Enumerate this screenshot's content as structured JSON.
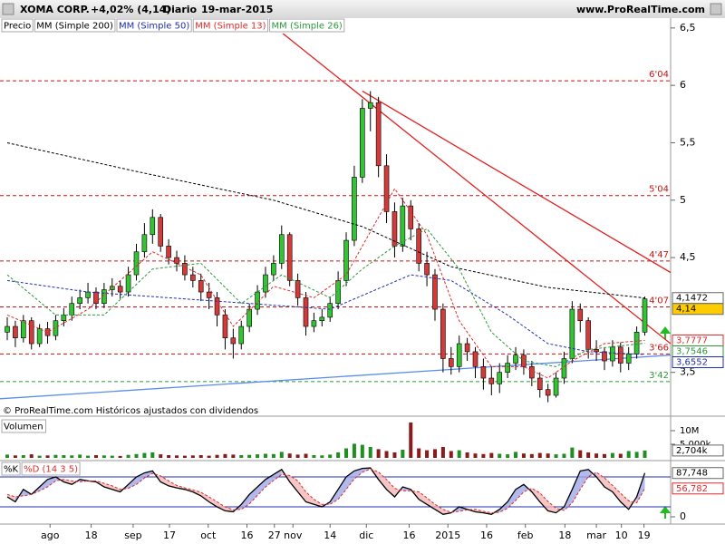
{
  "header": {
    "symbol": "XOMA CORP.",
    "change": "+4,02% (4,14)",
    "period": "Diario",
    "date": "19-mar-2015",
    "site": "www.ProRealTime.com"
  },
  "footer": "© ProRealTime.com  Históricos ajustados con dividendos",
  "chart_data": [
    {
      "type": "candlestick",
      "xlim": [
        -0.9,
        82.2
      ],
      "ylim": [
        3.15,
        6.57
      ],
      "yticks": [
        {
          "value": 6.5,
          "label": "6,5"
        },
        6,
        {
          "value": 5.5,
          "label": "5,5"
        },
        5,
        {
          "value": 4.5,
          "label": "4,5"
        },
        {
          "value": 3.5,
          "label": "3,5"
        }
      ],
      "xticks": [
        {
          "value": 5.3,
          "label": "ago"
        },
        {
          "value": 10.4,
          "label": "18"
        },
        {
          "value": 15.6,
          "label": "sep"
        },
        {
          "value": 20.1,
          "label": "17"
        },
        {
          "value": 24.9,
          "label": "oct"
        },
        {
          "value": 29.7,
          "label": "16"
        },
        {
          "value": 33.1,
          "label": "27"
        },
        {
          "value": 35.4,
          "label": "nov"
        },
        {
          "value": 40,
          "label": "14"
        },
        {
          "value": 44.5,
          "label": "dic"
        },
        {
          "value": 49.8,
          "label": "16"
        },
        {
          "value": 54.6,
          "label": "2015"
        },
        {
          "value": 59.4,
          "label": "16"
        },
        {
          "value": 64.2,
          "label": "feb"
        },
        {
          "value": 69.1,
          "label": "18"
        },
        {
          "value": 73,
          "label": "mar"
        },
        {
          "value": 76.1,
          "label": "10"
        },
        {
          "value": 78.9,
          "label": "19"
        }
      ],
      "series": [
        {
          "name": "Precio",
          "color": "#000000",
          "up_color": "#33c433",
          "down_color": "#d33a3a",
          "open": [
            3.85,
            3.9,
            3.8,
            3.95,
            3.75,
            3.88,
            3.82,
            3.95,
            4.0,
            4.1,
            4.15,
            4.2,
            4.1,
            4.22,
            4.25,
            4.2,
            4.35,
            4.55,
            4.7,
            4.85,
            4.6,
            4.5,
            4.45,
            4.35,
            4.3,
            4.2,
            4.15,
            4.0,
            3.8,
            3.75,
            3.9,
            4.05,
            4.2,
            4.35,
            4.45,
            4.7,
            4.3,
            4.15,
            3.9,
            3.95,
            3.98,
            4.1,
            4.3,
            4.65,
            5.2,
            5.8,
            5.85,
            5.3,
            4.9,
            4.6,
            4.95,
            4.75,
            4.45,
            4.35,
            4.05,
            3.62,
            3.55,
            3.75,
            3.68,
            3.55,
            3.45,
            3.4,
            3.5,
            3.58,
            3.65,
            3.55,
            3.45,
            3.35,
            3.3,
            3.45,
            3.62,
            4.05,
            3.95,
            3.7,
            3.68,
            3.6,
            3.72,
            3.58,
            3.66,
            3.85
          ],
          "high": [
            3.98,
            3.95,
            4.0,
            3.98,
            3.92,
            3.94,
            4.0,
            4.06,
            4.16,
            4.22,
            4.28,
            4.24,
            4.28,
            4.32,
            4.3,
            4.42,
            4.62,
            4.8,
            4.92,
            4.88,
            4.66,
            4.56,
            4.52,
            4.42,
            4.36,
            4.28,
            4.2,
            4.05,
            3.88,
            3.95,
            4.1,
            4.26,
            4.42,
            4.52,
            4.78,
            4.72,
            4.36,
            4.2,
            4.02,
            4.05,
            4.16,
            4.38,
            4.72,
            5.3,
            5.88,
            5.95,
            5.9,
            5.4,
            4.98,
            5.02,
            5.0,
            4.8,
            4.55,
            4.4,
            4.1,
            3.72,
            3.82,
            3.8,
            3.72,
            3.62,
            3.55,
            3.58,
            3.65,
            3.72,
            3.7,
            3.6,
            3.5,
            3.4,
            3.5,
            3.68,
            4.12,
            4.1,
            3.98,
            3.78,
            3.72,
            3.78,
            3.76,
            3.72,
            3.9,
            4.16
          ],
          "low": [
            3.78,
            3.72,
            3.76,
            3.7,
            3.72,
            3.75,
            3.78,
            3.9,
            3.95,
            4.05,
            4.1,
            4.05,
            4.06,
            4.16,
            4.14,
            4.16,
            4.3,
            4.5,
            4.62,
            4.55,
            4.44,
            4.38,
            4.3,
            4.24,
            4.12,
            4.05,
            3.9,
            3.7,
            3.62,
            3.7,
            3.85,
            4.0,
            4.15,
            4.3,
            4.4,
            4.25,
            4.08,
            3.82,
            3.85,
            3.9,
            3.94,
            4.05,
            4.25,
            4.6,
            5.15,
            5.6,
            5.2,
            4.8,
            4.5,
            4.55,
            4.65,
            4.38,
            4.25,
            3.95,
            3.5,
            3.48,
            3.5,
            3.6,
            3.45,
            3.35,
            3.3,
            3.32,
            3.45,
            3.52,
            3.48,
            3.38,
            3.28,
            3.24,
            3.28,
            3.4,
            3.58,
            3.85,
            3.62,
            3.6,
            3.52,
            3.55,
            3.5,
            3.52,
            3.62,
            3.82
          ],
          "close": [
            3.9,
            3.8,
            3.95,
            3.75,
            3.88,
            3.82,
            3.95,
            4.0,
            4.1,
            4.15,
            4.2,
            4.1,
            4.22,
            4.25,
            4.2,
            4.35,
            4.55,
            4.7,
            4.85,
            4.6,
            4.5,
            4.45,
            4.35,
            4.3,
            4.2,
            4.15,
            4.0,
            3.8,
            3.75,
            3.9,
            4.05,
            4.2,
            4.35,
            4.45,
            4.7,
            4.3,
            4.15,
            3.9,
            3.95,
            3.98,
            4.1,
            4.3,
            4.65,
            5.2,
            5.8,
            5.85,
            5.3,
            4.9,
            4.6,
            4.95,
            4.75,
            4.45,
            4.35,
            4.05,
            3.62,
            3.55,
            3.75,
            3.68,
            3.55,
            3.45,
            3.4,
            3.5,
            3.58,
            3.65,
            3.55,
            3.45,
            3.35,
            3.3,
            3.45,
            3.62,
            4.05,
            3.95,
            3.7,
            3.68,
            3.6,
            3.72,
            3.58,
            3.66,
            3.85,
            4.14
          ]
        },
        {
          "name": "MM (Simple 200)",
          "color": "#000000",
          "x": [
            0,
            16,
            33,
            44,
            55,
            67,
            79
          ],
          "values": [
            5.5,
            5.25,
            5.0,
            4.77,
            4.42,
            4.24,
            4.1472
          ]
        },
        {
          "name": "MM (Simple 50)",
          "color": "#1f2fb0",
          "x": [
            0,
            10,
            20,
            30,
            40,
            50,
            55,
            62,
            67,
            72,
            79
          ],
          "values": [
            4.3,
            4.2,
            4.15,
            4.1,
            4.05,
            4.35,
            4.3,
            4.0,
            3.75,
            3.68,
            3.6552
          ]
        },
        {
          "name": "MM (Simple 13)",
          "color": "#e02a2a",
          "x": [
            0,
            5,
            10,
            18,
            24,
            28,
            33,
            38,
            42,
            46,
            48,
            52,
            56,
            60,
            64,
            67,
            70,
            74,
            79
          ],
          "values": [
            4.0,
            3.85,
            4.05,
            4.55,
            4.35,
            3.9,
            4.25,
            4.15,
            4.35,
            4.85,
            5.1,
            4.7,
            3.95,
            3.55,
            3.55,
            3.45,
            3.6,
            3.75,
            3.7777
          ]
        },
        {
          "name": "MM (Simple 26)",
          "color": "#2a9a3a",
          "x": [
            0,
            6,
            12,
            18,
            24,
            29,
            34,
            40,
            44,
            48,
            52,
            56,
            60,
            64,
            68,
            72,
            79
          ],
          "values": [
            4.35,
            4.0,
            4.0,
            4.4,
            4.45,
            4.1,
            4.35,
            4.15,
            4.4,
            4.6,
            4.75,
            4.4,
            3.85,
            3.6,
            3.55,
            3.7,
            3.7546
          ]
        }
      ],
      "levels": [
        {
          "value": 6.04,
          "label": "6'04",
          "color": "#cc1111"
        },
        {
          "value": 5.04,
          "label": "5'04",
          "color": "#cc1111"
        },
        {
          "value": 4.47,
          "label": "4'47",
          "color": "#cc1111"
        },
        {
          "value": 4.07,
          "label": "4'07",
          "color": "#cc1111"
        },
        {
          "value": 3.66,
          "label": "3'66",
          "color": "#cc1111"
        },
        {
          "value": 3.42,
          "label": "3'42",
          "color": "#2a9a3a"
        }
      ],
      "trendlines": [
        {
          "x": [
            44,
            82.2
          ],
          "values": [
            5.95,
            4.37
          ],
          "color": "#e02020"
        },
        {
          "x": [
            31.7,
            82.2
          ],
          "values": [
            6.59,
            3.75
          ],
          "color": "#e02020"
        },
        {
          "x": [
            -0.9,
            82.2
          ],
          "values": [
            3.27,
            3.65
          ],
          "color": "#5b8def"
        }
      ],
      "last_values": [
        {
          "value": 4.1472,
          "label": "4,1472",
          "color": "#000000",
          "bg": "#ffffff"
        },
        {
          "value": 4.14,
          "label": "4,14",
          "color": "#000000",
          "bg": "#ffcc00"
        },
        {
          "value": 3.7777,
          "label": "3,7777",
          "color": "#e02a2a",
          "bg": "#ffffff"
        },
        {
          "value": 3.7546,
          "label": "3,7546",
          "color": "#2a9a3a",
          "bg": "#ffffff"
        },
        {
          "value": 3.6552,
          "label": "3,6552",
          "color": "#1f2fb0",
          "bg": "#ffffff"
        }
      ]
    },
    {
      "type": "bar",
      "title": "Volumen",
      "ylim": [
        0,
        14
      ],
      "yticks": [
        {
          "value": 10,
          "label": "10M"
        },
        {
          "value": 5,
          "label": "5,000k"
        }
      ],
      "values": [
        1.2,
        0.9,
        1.0,
        1.3,
        0.8,
        0.9,
        1.1,
        1.0,
        0.9,
        1.2,
        0.8,
        1.0,
        0.9,
        0.8,
        0.7,
        1.1,
        1.4,
        1.8,
        2.0,
        1.3,
        1.0,
        0.9,
        0.8,
        0.9,
        1.0,
        0.8,
        1.1,
        1.4,
        1.2,
        1.0,
        1.1,
        1.3,
        1.5,
        1.4,
        2.2,
        1.6,
        1.2,
        1.5,
        1.0,
        0.9,
        1.2,
        2.0,
        3.5,
        5.2,
        4.8,
        4.0,
        3.2,
        2.5,
        2.0,
        3.0,
        13.0,
        3.5,
        2.8,
        3.2,
        4.0,
        2.5,
        2.8,
        2.0,
        1.6,
        1.4,
        1.8,
        1.5,
        1.3,
        2.2,
        1.6,
        1.4,
        1.8,
        1.6,
        1.3,
        1.5,
        3.8,
        2.8,
        2.0,
        1.6,
        1.4,
        1.8,
        1.5,
        2.5,
        2.2,
        2.704
      ],
      "last_values": [
        {
          "value": 2.704,
          "label": "2,704k",
          "color": "#000000",
          "bg": "#ffffff"
        }
      ]
    },
    {
      "type": "line",
      "ylim": [
        0,
        100
      ],
      "yticks": [
        0
      ],
      "hlines": [
        80,
        20
      ],
      "hline_color": "#1f2fb0",
      "series": [
        {
          "name": "%K",
          "color": "#000000",
          "values": [
            40,
            30,
            55,
            45,
            60,
            75,
            80,
            70,
            65,
            75,
            72,
            70,
            60,
            55,
            50,
            65,
            80,
            88,
            92,
            70,
            62,
            58,
            55,
            50,
            42,
            30,
            20,
            12,
            10,
            25,
            45,
            60,
            75,
            85,
            95,
            70,
            50,
            30,
            25,
            20,
            30,
            55,
            80,
            92,
            97,
            98,
            75,
            55,
            40,
            60,
            55,
            35,
            25,
            15,
            5,
            8,
            20,
            15,
            10,
            8,
            5,
            15,
            30,
            55,
            65,
            50,
            30,
            12,
            8,
            20,
            55,
            92,
            95,
            80,
            60,
            50,
            30,
            15,
            40,
            87.748
          ]
        },
        {
          "name": "%D (14 3 5)",
          "color": "#e02a2a",
          "values": [
            45,
            40,
            42,
            45,
            52,
            60,
            72,
            75,
            72,
            70,
            72,
            72,
            67,
            62,
            55,
            57,
            65,
            78,
            87,
            82,
            72,
            63,
            58,
            54,
            49,
            40,
            30,
            20,
            14,
            15,
            26,
            43,
            60,
            73,
            85,
            83,
            72,
            50,
            35,
            25,
            25,
            35,
            55,
            76,
            89,
            96,
            90,
            75,
            57,
            52,
            52,
            50,
            38,
            25,
            15,
            9,
            11,
            14,
            15,
            11,
            8,
            9,
            17,
            33,
            50,
            57,
            48,
            31,
            17,
            13,
            28,
            55,
            81,
            89,
            78,
            63,
            47,
            32,
            28,
            56.782
          ]
        }
      ],
      "last_values": [
        {
          "value": 87.748,
          "label": "87,748",
          "color": "#000000",
          "bg": "#ffffff"
        },
        {
          "value": 56.782,
          "label": "56,782",
          "color": "#e02a2a",
          "bg": "#ffffff"
        }
      ]
    }
  ]
}
